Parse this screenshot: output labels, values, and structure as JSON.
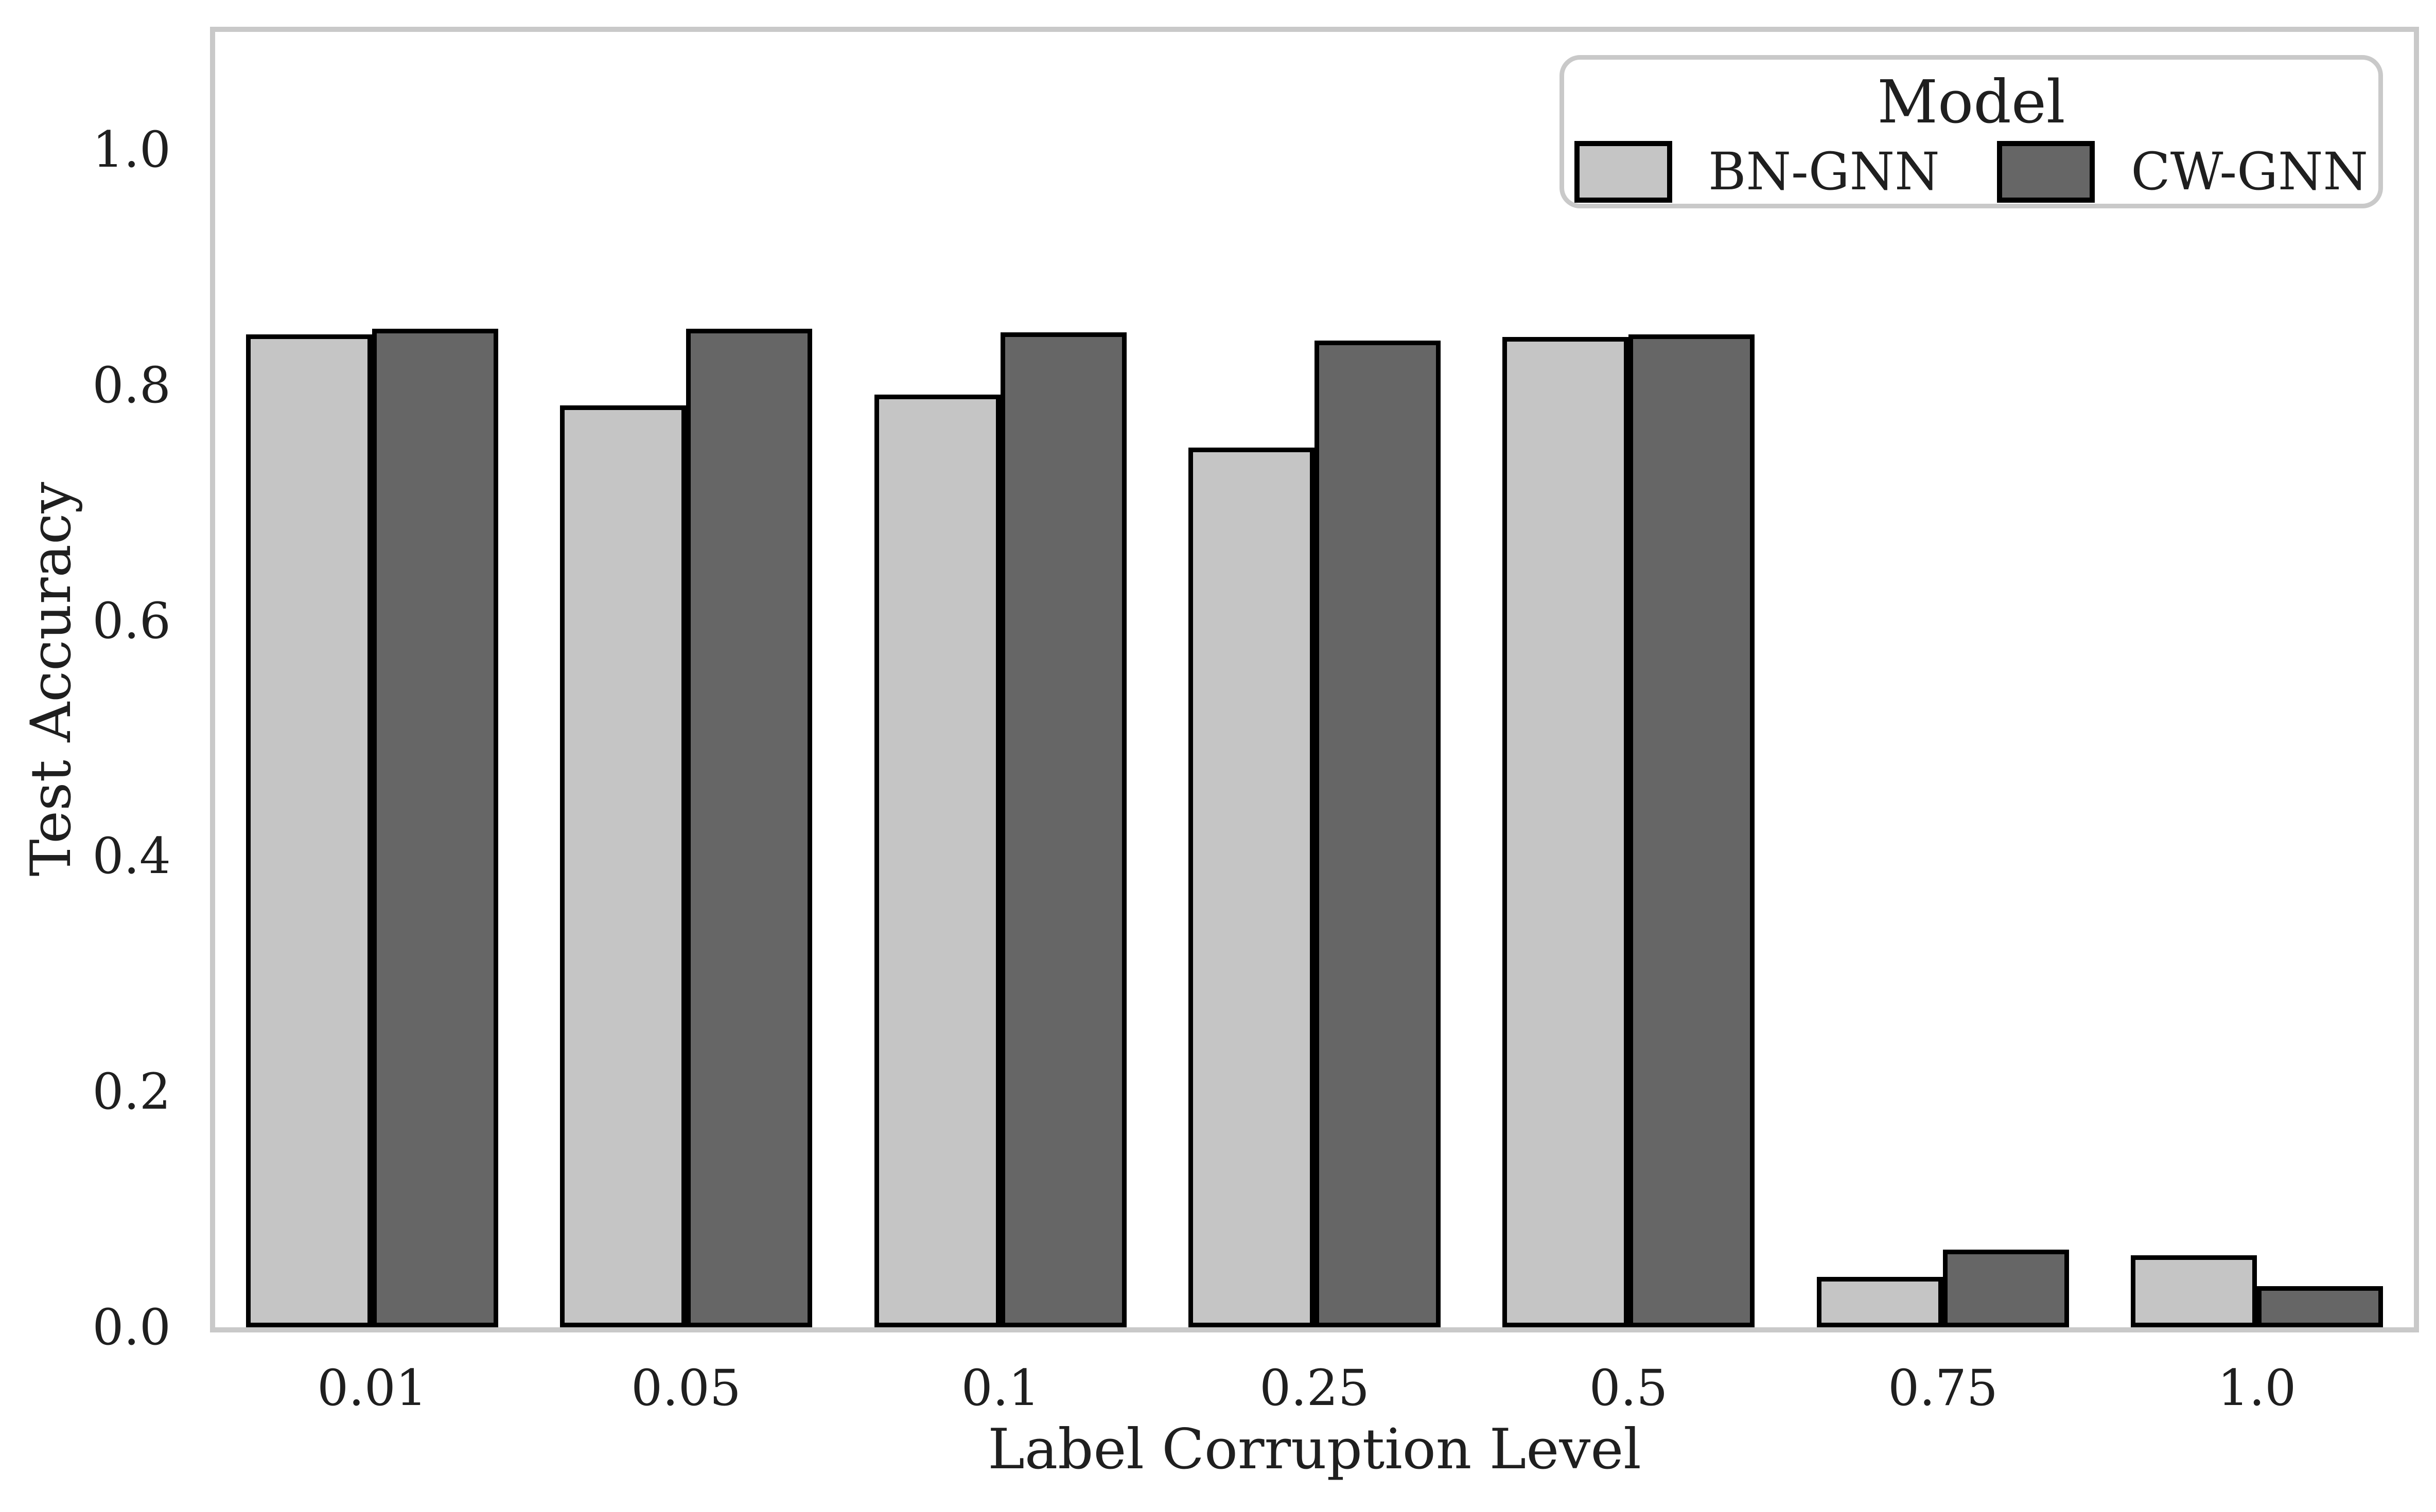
{
  "chart_data": {
    "type": "bar",
    "title": "",
    "xlabel": "Label Corruption Level",
    "ylabel": "Test Accuracy",
    "categories": [
      "0.01",
      "0.05",
      "0.1",
      "0.25",
      "0.5",
      "0.75",
      "1.0"
    ],
    "series": [
      {
        "name": "BN-GNN",
        "color": "#c5c5c5",
        "values": [
          0.843,
          0.783,
          0.792,
          0.747,
          0.841,
          0.043,
          0.061
        ]
      },
      {
        "name": "CW-GNN",
        "color": "#666666",
        "values": [
          0.848,
          0.848,
          0.845,
          0.838,
          0.843,
          0.066,
          0.035
        ]
      }
    ],
    "ylim": [
      0,
      1.1
    ],
    "yticks": [
      0.0,
      0.2,
      0.4,
      0.6,
      0.8,
      1.0
    ],
    "ytick_labels": [
      "0.0",
      "0.2",
      "0.4",
      "0.6",
      "0.8",
      "1.0"
    ],
    "legend_title": "Model",
    "legend_position": "upper right",
    "grid": false,
    "bar_edge_color": "#000000",
    "axes_edge_color": "#c9c9c9",
    "text_color": "#1f1f1f",
    "background_color": "#ffffff"
  }
}
